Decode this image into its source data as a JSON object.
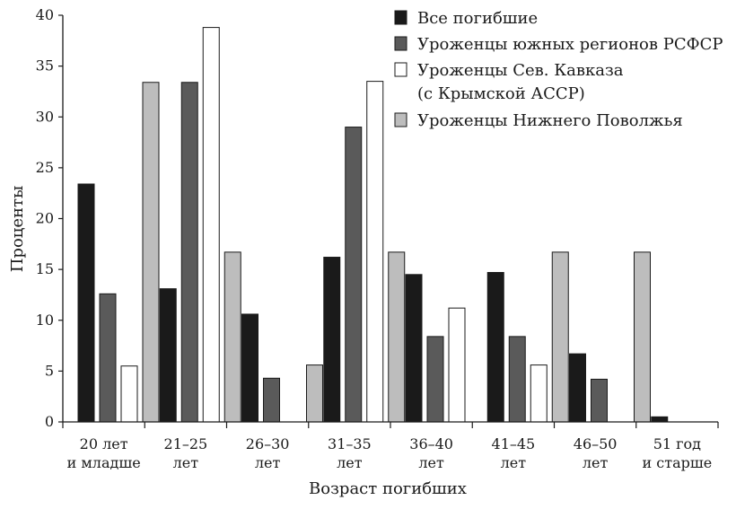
{
  "chart_data": {
    "type": "bar",
    "ylabel": "Проценты",
    "xlabel": "Возраст погибших",
    "ylim": [
      0,
      40
    ],
    "yticks": [
      "0",
      "5",
      "10",
      "15",
      "20",
      "25",
      "30",
      "35",
      "40"
    ],
    "categories": [
      [
        "20 лет",
        "и младше"
      ],
      [
        "21–25",
        "лет"
      ],
      [
        "26–30",
        "лет"
      ],
      [
        "31–35",
        "лет"
      ],
      [
        "36–40",
        "лет"
      ],
      [
        "41–45",
        "лет"
      ],
      [
        "46–50",
        "лет"
      ],
      [
        "51 год",
        "и старше"
      ]
    ],
    "series": [
      {
        "name": "Все погибшие",
        "color": "#1a1a1a",
        "values": [
          23.4,
          13.1,
          10.6,
          16.2,
          14.5,
          14.7,
          6.7,
          0.5
        ]
      },
      {
        "name": "Уроженцы южных регионов РСФСР",
        "color": "#5a5a5a",
        "values": [
          12.6,
          33.4,
          4.3,
          29.0,
          8.4,
          8.4,
          4.2,
          0
        ]
      },
      {
        "name": [
          "Уроженцы Сев. Кавказа",
          "(с Крымской АССР)"
        ],
        "color": "#ffffff",
        "values": [
          5.5,
          38.8,
          0,
          33.5,
          11.2,
          5.6,
          0,
          0
        ]
      },
      {
        "name": "Уроженцы Нижнего Поволжья",
        "color": "#bdbdbd",
        "values": [
          33.4,
          16.7,
          5.6,
          16.7,
          0,
          16.7,
          16.7,
          0
        ]
      }
    ],
    "legend_position": "top-right",
    "grid": false
  }
}
